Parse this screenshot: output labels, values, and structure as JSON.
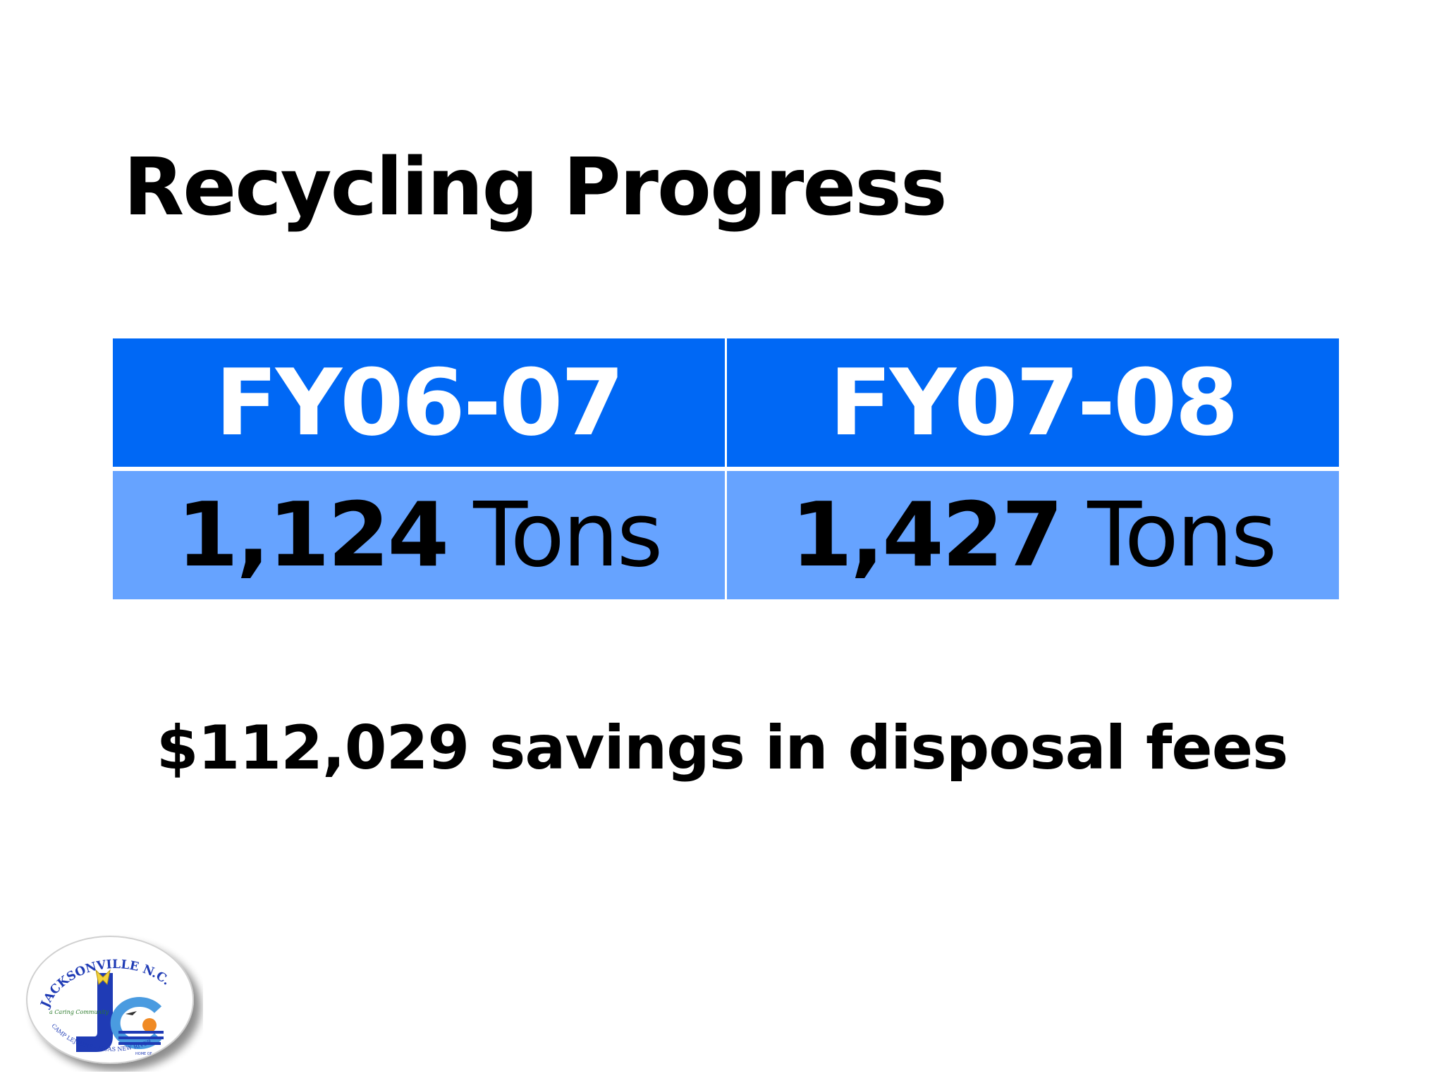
{
  "slide": {
    "title": "Recycling Progress",
    "table": {
      "columns": [
        {
          "year": "FY06-07",
          "amount": "1,124",
          "unit": "Tons"
        },
        {
          "year": "FY07-08",
          "amount": "1,427",
          "unit": "Tons"
        }
      ]
    },
    "savings": "$112,029 savings in disposal fees",
    "logo": {
      "top_text": "JACKSONVILLE N.C.",
      "motto": "a Caring Community",
      "bottom_text": "CAMP LEJEUNE · MCAS NEW RIVER",
      "home_text": "HOME OF",
      "colors": {
        "blue": "#1f3bb5",
        "light_blue": "#4a9be0",
        "yellow": "#f2d23c",
        "orange": "#f08a24"
      }
    }
  }
}
